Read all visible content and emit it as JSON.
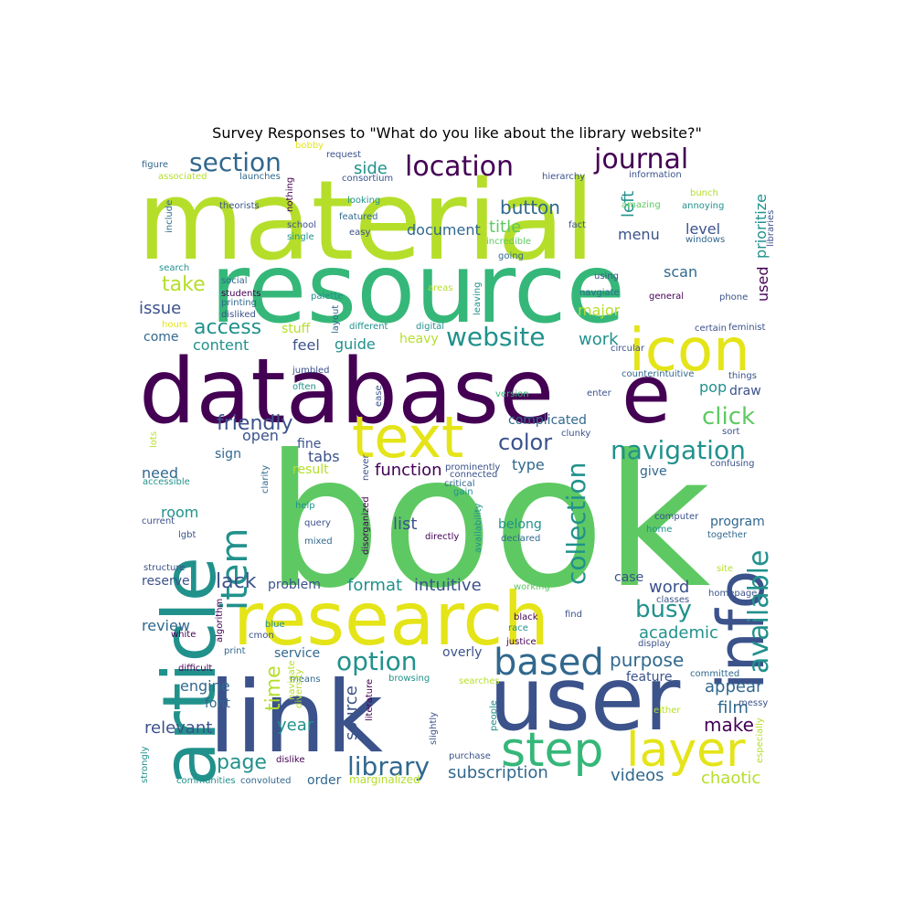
{
  "title": "Survey Responses to \"What do you like about the library website?\"",
  "palette": {
    "purple": "#440154",
    "indigo": "#3b528b",
    "teal": "#21918c",
    "green": "#5ec962",
    "lime": "#b5de2b",
    "yellow": "#e4e419",
    "blue": "#31688e",
    "seagreen": "#35b779"
  },
  "words": [
    {
      "text": "book",
      "color": "green"
    },
    {
      "text": "material",
      "color": "lime"
    },
    {
      "text": "resource",
      "color": "seagreen"
    },
    {
      "text": "database",
      "color": "purple"
    },
    {
      "text": "link",
      "color": "indigo"
    },
    {
      "text": "user",
      "color": "indigo"
    },
    {
      "text": "research",
      "color": "yellow"
    },
    {
      "text": "article",
      "color": "teal"
    },
    {
      "text": "info",
      "color": "indigo"
    },
    {
      "text": "e",
      "color": "purple"
    },
    {
      "text": "icon",
      "color": "yellow"
    },
    {
      "text": "text",
      "color": "yellow"
    },
    {
      "text": "step",
      "color": "seagreen"
    },
    {
      "text": "layer",
      "color": "yellow"
    },
    {
      "text": "item",
      "color": "teal"
    },
    {
      "text": "based",
      "color": "blue"
    },
    {
      "text": "available",
      "color": "teal"
    },
    {
      "text": "collection",
      "color": "teal"
    },
    {
      "text": "library",
      "color": "blue"
    },
    {
      "text": "option",
      "color": "teal"
    },
    {
      "text": "website",
      "color": "teal"
    },
    {
      "text": "navigation",
      "color": "teal"
    },
    {
      "text": "location",
      "color": "purple"
    },
    {
      "text": "journal",
      "color": "purple"
    },
    {
      "text": "section",
      "color": "blue"
    },
    {
      "text": "friendly",
      "color": "indigo"
    },
    {
      "text": "click",
      "color": "green"
    },
    {
      "text": "busy",
      "color": "teal"
    },
    {
      "text": "color",
      "color": "indigo"
    },
    {
      "text": "access",
      "color": "teal"
    },
    {
      "text": "lack",
      "color": "indigo"
    },
    {
      "text": "page",
      "color": "teal"
    },
    {
      "text": "take",
      "color": "lime"
    },
    {
      "text": "time",
      "color": "lime"
    },
    {
      "text": "purpose",
      "color": "blue"
    },
    {
      "text": "button",
      "color": "blue"
    },
    {
      "text": "side",
      "color": "teal"
    },
    {
      "text": "year",
      "color": "teal"
    },
    {
      "text": "work",
      "color": "teal"
    },
    {
      "text": "word",
      "color": "indigo"
    },
    {
      "text": "make",
      "color": "purple"
    },
    {
      "text": "academic",
      "color": "teal"
    },
    {
      "text": "appear",
      "color": "blue"
    },
    {
      "text": "film",
      "color": "blue"
    },
    {
      "text": "intuitive",
      "color": "indigo"
    },
    {
      "text": "format",
      "color": "teal"
    },
    {
      "text": "subscription",
      "color": "blue"
    },
    {
      "text": "relevant",
      "color": "indigo"
    },
    {
      "text": "function",
      "color": "purple"
    },
    {
      "text": "source",
      "color": "indigo"
    },
    {
      "text": "chaotic",
      "color": "lime"
    },
    {
      "text": "videos",
      "color": "blue"
    },
    {
      "text": "title",
      "color": "green"
    },
    {
      "text": "document",
      "color": "blue"
    },
    {
      "text": "left",
      "color": "teal"
    },
    {
      "text": "menu",
      "color": "indigo"
    },
    {
      "text": "level",
      "color": "indigo"
    },
    {
      "text": "prioritize",
      "color": "teal"
    },
    {
      "text": "used",
      "color": "purple"
    },
    {
      "text": "scan",
      "color": "blue"
    },
    {
      "text": "major",
      "color": "lime"
    },
    {
      "text": "issue",
      "color": "indigo"
    },
    {
      "text": "content",
      "color": "teal"
    },
    {
      "text": "feel",
      "color": "indigo"
    },
    {
      "text": "guide",
      "color": "teal"
    },
    {
      "text": "pop",
      "color": "teal"
    },
    {
      "text": "draw",
      "color": "indigo"
    },
    {
      "text": "open",
      "color": "indigo"
    },
    {
      "text": "complicated",
      "color": "blue"
    },
    {
      "text": "tabs",
      "color": "indigo"
    },
    {
      "text": "fine",
      "color": "indigo"
    },
    {
      "text": "type",
      "color": "blue"
    },
    {
      "text": "need",
      "color": "blue"
    },
    {
      "text": "room",
      "color": "teal"
    },
    {
      "text": "list",
      "color": "indigo"
    },
    {
      "text": "belong",
      "color": "teal"
    },
    {
      "text": "program",
      "color": "blue"
    },
    {
      "text": "review",
      "color": "blue"
    },
    {
      "text": "reserve",
      "color": "indigo"
    },
    {
      "text": "problem",
      "color": "indigo"
    },
    {
      "text": "case",
      "color": "indigo"
    },
    {
      "text": "service",
      "color": "blue"
    },
    {
      "text": "overly",
      "color": "indigo"
    },
    {
      "text": "engine",
      "color": "blue"
    },
    {
      "text": "font",
      "color": "blue"
    },
    {
      "text": "feature",
      "color": "indigo"
    },
    {
      "text": "order",
      "color": "blue"
    },
    {
      "text": "give",
      "color": "blue"
    },
    {
      "text": "sign",
      "color": "blue"
    },
    {
      "text": "stuff",
      "color": "lime"
    },
    {
      "text": "come",
      "color": "blue"
    },
    {
      "text": "heavy",
      "color": "lime"
    },
    {
      "text": "result",
      "color": "lime"
    },
    {
      "text": "figure",
      "color": "blue"
    },
    {
      "text": "associated",
      "color": "lime"
    },
    {
      "text": "bobby",
      "color": "yellow"
    },
    {
      "text": "request",
      "color": "indigo"
    },
    {
      "text": "launches",
      "color": "blue"
    },
    {
      "text": "consortium",
      "color": "indigo"
    },
    {
      "text": "hierarchy",
      "color": "indigo"
    },
    {
      "text": "information",
      "color": "indigo"
    },
    {
      "text": "bunch",
      "color": "lime"
    },
    {
      "text": "annoying",
      "color": "teal"
    },
    {
      "text": "amazing",
      "color": "green"
    },
    {
      "text": "include",
      "color": "blue"
    },
    {
      "text": "nothing",
      "color": "purple"
    },
    {
      "text": "theorists",
      "color": "indigo"
    },
    {
      "text": "looking",
      "color": "teal"
    },
    {
      "text": "featured",
      "color": "blue"
    },
    {
      "text": "fact",
      "color": "indigo"
    },
    {
      "text": "school",
      "color": "indigo"
    },
    {
      "text": "single",
      "color": "teal"
    },
    {
      "text": "easy",
      "color": "indigo"
    },
    {
      "text": "incredible",
      "color": "green"
    },
    {
      "text": "going",
      "color": "blue"
    },
    {
      "text": "windows",
      "color": "blue"
    },
    {
      "text": "libraries",
      "color": "indigo"
    },
    {
      "text": "search",
      "color": "teal"
    },
    {
      "text": "social",
      "color": "blue"
    },
    {
      "text": "students",
      "color": "purple"
    },
    {
      "text": "printing",
      "color": "blue"
    },
    {
      "text": "disliked",
      "color": "indigo"
    },
    {
      "text": "palette",
      "color": "teal"
    },
    {
      "text": "areas",
      "color": "lime"
    },
    {
      "text": "leaving",
      "color": "teal"
    },
    {
      "text": "using",
      "color": "indigo"
    },
    {
      "text": "navgiate",
      "color": "blue"
    },
    {
      "text": "general",
      "color": "purple"
    },
    {
      "text": "phone",
      "color": "indigo"
    },
    {
      "text": "layout",
      "color": "blue"
    },
    {
      "text": "hours",
      "color": "yellow"
    },
    {
      "text": "different",
      "color": "teal"
    },
    {
      "text": "digital",
      "color": "teal"
    },
    {
      "text": "certain",
      "color": "indigo"
    },
    {
      "text": "feminist",
      "color": "indigo"
    },
    {
      "text": "circular",
      "color": "indigo"
    },
    {
      "text": "counterintuitive",
      "color": "blue"
    },
    {
      "text": "things",
      "color": "indigo"
    },
    {
      "text": "jumbled",
      "color": "indigo"
    },
    {
      "text": "often",
      "color": "teal"
    },
    {
      "text": "ease",
      "color": "indigo"
    },
    {
      "text": "version",
      "color": "seagreen"
    },
    {
      "text": "enter",
      "color": "indigo"
    },
    {
      "text": "clunky",
      "color": "indigo"
    },
    {
      "text": "sort",
      "color": "indigo"
    },
    {
      "text": "lots",
      "color": "lime"
    },
    {
      "text": "clarity",
      "color": "blue"
    },
    {
      "text": "prominently",
      "color": "indigo"
    },
    {
      "text": "connected",
      "color": "indigo"
    },
    {
      "text": "critical",
      "color": "blue"
    },
    {
      "text": "never",
      "color": "indigo"
    },
    {
      "text": "gain",
      "color": "teal"
    },
    {
      "text": "confusing",
      "color": "indigo"
    },
    {
      "text": "accessible",
      "color": "teal"
    },
    {
      "text": "help",
      "color": "teal"
    },
    {
      "text": "query",
      "color": "indigo"
    },
    {
      "text": "mixed",
      "color": "blue"
    },
    {
      "text": "disorganized",
      "color": "purple"
    },
    {
      "text": "directly",
      "color": "purple"
    },
    {
      "text": "availability",
      "color": "teal"
    },
    {
      "text": "declared",
      "color": "blue"
    },
    {
      "text": "computer",
      "color": "indigo"
    },
    {
      "text": "together",
      "color": "blue"
    },
    {
      "text": "home",
      "color": "teal"
    },
    {
      "text": "current",
      "color": "indigo"
    },
    {
      "text": "lgbt",
      "color": "indigo"
    },
    {
      "text": "structure",
      "color": "indigo"
    },
    {
      "text": "site",
      "color": "lime"
    },
    {
      "text": "homepage",
      "color": "indigo"
    },
    {
      "text": "classes",
      "color": "indigo"
    },
    {
      "text": "working",
      "color": "green"
    },
    {
      "text": "black",
      "color": "purple"
    },
    {
      "text": "find",
      "color": "indigo"
    },
    {
      "text": "algorithm",
      "color": "purple"
    },
    {
      "text": "white",
      "color": "purple"
    },
    {
      "text": "blue",
      "color": "teal"
    },
    {
      "text": "cmon",
      "color": "indigo"
    },
    {
      "text": "race",
      "color": "teal"
    },
    {
      "text": "justice",
      "color": "purple"
    },
    {
      "text": "display",
      "color": "indigo"
    },
    {
      "text": "print",
      "color": "blue"
    },
    {
      "text": "difficult",
      "color": "purple"
    },
    {
      "text": "committed",
      "color": "blue"
    },
    {
      "text": "means",
      "color": "blue"
    },
    {
      "text": "navigate",
      "color": "lime"
    },
    {
      "text": "diversity",
      "color": "lime"
    },
    {
      "text": "literature",
      "color": "purple"
    },
    {
      "text": "browsing",
      "color": "teal"
    },
    {
      "text": "searches",
      "color": "lime"
    },
    {
      "text": "messy",
      "color": "indigo"
    },
    {
      "text": "people",
      "color": "teal"
    },
    {
      "text": "slightly",
      "color": "indigo"
    },
    {
      "text": "either",
      "color": "lime"
    },
    {
      "text": "especially",
      "color": "lime"
    },
    {
      "text": "purchase",
      "color": "indigo"
    },
    {
      "text": "strongly",
      "color": "teal"
    },
    {
      "text": "dislike",
      "color": "purple"
    },
    {
      "text": "communities",
      "color": "teal"
    },
    {
      "text": "convoluted",
      "color": "blue"
    },
    {
      "text": "marginalized",
      "color": "lime"
    }
  ]
}
